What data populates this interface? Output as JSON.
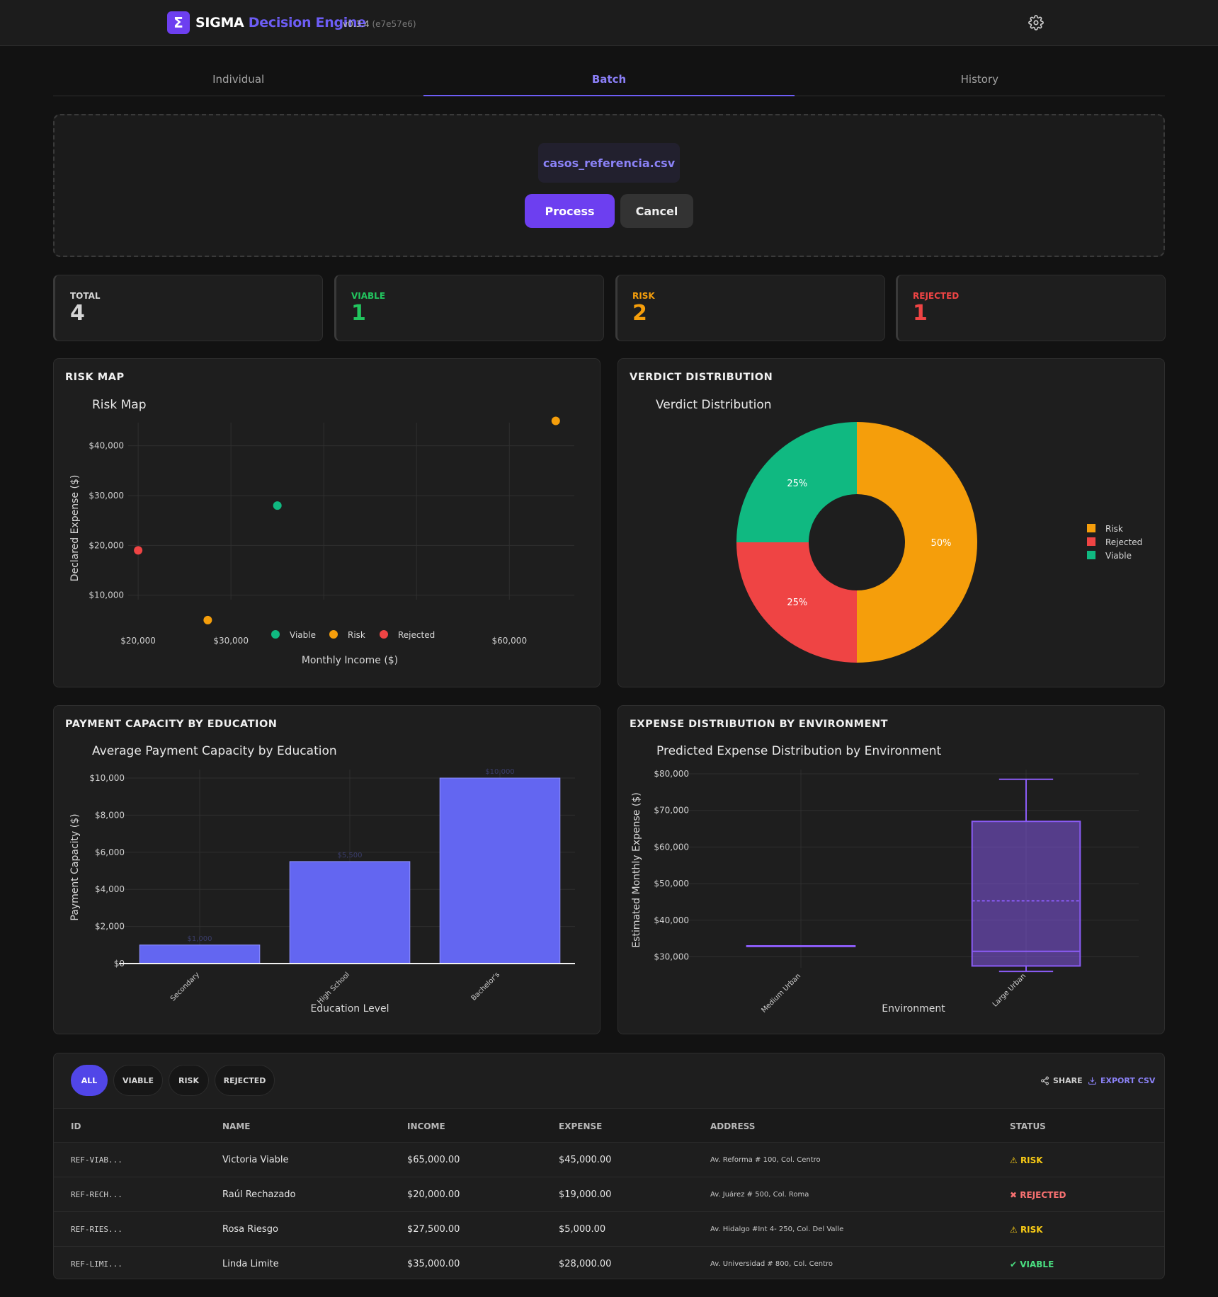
{
  "header": {
    "brand_a": "SIGMA",
    "brand_b": "Decision Engine",
    "version": "v0.3.4",
    "commit": "(e7e57e6)",
    "logo_glyph": "Σ"
  },
  "tabs": [
    {
      "label": "Individual"
    },
    {
      "label": "Batch"
    },
    {
      "label": "History"
    }
  ],
  "upload": {
    "file_name": "casos_referencia.csv",
    "process_label": "Process",
    "cancel_label": "Cancel"
  },
  "stats": [
    {
      "label": "TOTAL",
      "value": "4",
      "color": "#d4d4d4"
    },
    {
      "label": "VIABLE",
      "value": "1",
      "color": "#22c55e"
    },
    {
      "label": "RISK",
      "value": "2",
      "color": "#f59e0b"
    },
    {
      "label": "REJECTED",
      "value": "1",
      "color": "#ef4444"
    }
  ],
  "panels": {
    "risk_map": "RISK MAP",
    "verdict": "VERDICT DISTRIBUTION",
    "payment": "PAYMENT CAPACITY BY EDUCATION",
    "expense": "EXPENSE DISTRIBUTION BY ENVIRONMENT"
  },
  "chart_data": [
    {
      "type": "scatter",
      "title": "Risk Map",
      "xlabel": "Monthly Income ($)",
      "ylabel": "Declared Expense ($)",
      "xlim": [
        19000,
        67000
      ],
      "ylim": [
        2000,
        44500
      ],
      "x_ticks": [
        {
          "value": 20000,
          "label": "$20,000"
        },
        {
          "value": 30000,
          "label": "$30,000"
        },
        {
          "value": 60000,
          "label": "$60,000"
        }
      ],
      "x_grid": [
        20000,
        30000,
        40000,
        50000,
        60000
      ],
      "y_ticks": [
        {
          "value": 10000,
          "label": "$10,000"
        },
        {
          "value": 20000,
          "label": "$20,000"
        },
        {
          "value": 30000,
          "label": "$30,000"
        },
        {
          "value": 40000,
          "label": "$40,000"
        }
      ],
      "legend": [
        "Viable",
        "Risk",
        "Rejected"
      ],
      "series": [
        {
          "name": "Viable",
          "color": "#10b981",
          "points": [
            {
              "x": 35000,
              "y": 28000
            }
          ]
        },
        {
          "name": "Risk",
          "color": "#f59e0b",
          "points": [
            {
              "x": 27500,
              "y": 5000
            },
            {
              "x": 65000,
              "y": 45000
            }
          ]
        },
        {
          "name": "Rejected",
          "color": "#ef4444",
          "points": [
            {
              "x": 20000,
              "y": 19000
            }
          ]
        }
      ]
    },
    {
      "type": "pie",
      "title": "Verdict Distribution",
      "hole": true,
      "slices": [
        {
          "label": "Risk",
          "value": 2,
          "percent": "50%",
          "color": "#f59e0b"
        },
        {
          "label": "Rejected",
          "value": 1,
          "percent": "25%",
          "color": "#ef4444"
        },
        {
          "label": "Viable",
          "value": 1,
          "percent": "25%",
          "color": "#10b981"
        }
      ]
    },
    {
      "type": "bar",
      "title": "Average Payment Capacity by Education",
      "xlabel": "Education Level",
      "ylabel": "Payment Capacity ($)",
      "ylim": [
        0,
        10000
      ],
      "categories": [
        "Secondary",
        "High School",
        "Bachelor's"
      ],
      "values": [
        1000,
        5500,
        10000
      ],
      "value_labels": [
        "$1,000",
        "$5,500",
        "$10,000"
      ],
      "color": "#6366f1",
      "y_ticks": [
        {
          "value": 0,
          "label": "$0"
        },
        {
          "value": 2000,
          "label": "$2,000"
        },
        {
          "value": 4000,
          "label": "$4,000"
        },
        {
          "value": 6000,
          "label": "$6,000"
        },
        {
          "value": 8000,
          "label": "$8,000"
        },
        {
          "value": 10000,
          "label": "$10,000"
        }
      ]
    },
    {
      "type": "box",
      "title": "Predicted Expense Distribution by Environment",
      "xlabel": "Environment",
      "ylabel": "Estimated Monthly Expense ($)",
      "ylim": [
        27000,
        80000
      ],
      "categories": [
        "Medium Urban",
        "Large Urban"
      ],
      "boxes": [
        {
          "category": "Medium Urban",
          "min": 33000,
          "q1": 33000,
          "median": 33000,
          "mean": 33000,
          "q3": 33000,
          "max": 33000
        },
        {
          "category": "Large Urban",
          "min": 26000,
          "q1": 27500,
          "median": 31500,
          "mean": 45300,
          "q3": 67000,
          "max": 78500
        }
      ],
      "color": "#8b5cf6",
      "y_ticks": [
        {
          "value": 30000,
          "label": "$30,000"
        },
        {
          "value": 40000,
          "label": "$40,000"
        },
        {
          "value": 50000,
          "label": "$50,000"
        },
        {
          "value": 60000,
          "label": "$60,000"
        },
        {
          "value": 70000,
          "label": "$70,000"
        },
        {
          "value": 80000,
          "label": "$80,000"
        }
      ]
    }
  ],
  "table": {
    "filters": [
      {
        "label": "ALL",
        "active": true
      },
      {
        "label": "VIABLE",
        "active": false
      },
      {
        "label": "RISK",
        "active": false
      },
      {
        "label": "REJECTED",
        "active": false
      }
    ],
    "share_label": "SHARE",
    "export_label": "EXPORT CSV",
    "columns": [
      "ID",
      "NAME",
      "INCOME",
      "EXPENSE",
      "ADDRESS",
      "STATUS"
    ],
    "rows": [
      {
        "id": "REF-VIAB...",
        "name": "Victoria Viable",
        "income": "$65,000.00",
        "expense": "$45,000.00",
        "address": "Av. Reforma # 100, Col. Centro",
        "status": "RISK",
        "status_icon": "⚠",
        "status_color": "#facc15"
      },
      {
        "id": "REF-RECH...",
        "name": "Raúl Rechazado",
        "income": "$20,000.00",
        "expense": "$19,000.00",
        "address": "Av. Juárez # 500, Col. Roma",
        "status": "REJECTED",
        "status_icon": "✖",
        "status_color": "#f87171"
      },
      {
        "id": "REF-RIES...",
        "name": "Rosa Riesgo",
        "income": "$27,500.00",
        "expense": "$5,000.00",
        "address": "Av. Hidalgo #Int 4- 250, Col. Del Valle",
        "status": "RISK",
        "status_icon": "⚠",
        "status_color": "#facc15"
      },
      {
        "id": "REF-LIMI...",
        "name": "Linda Limite",
        "income": "$35,000.00",
        "expense": "$28,000.00",
        "address": "Av. Universidad # 800, Col. Centro",
        "status": "VIABLE",
        "status_icon": "✔",
        "status_color": "#4ade80"
      }
    ]
  }
}
